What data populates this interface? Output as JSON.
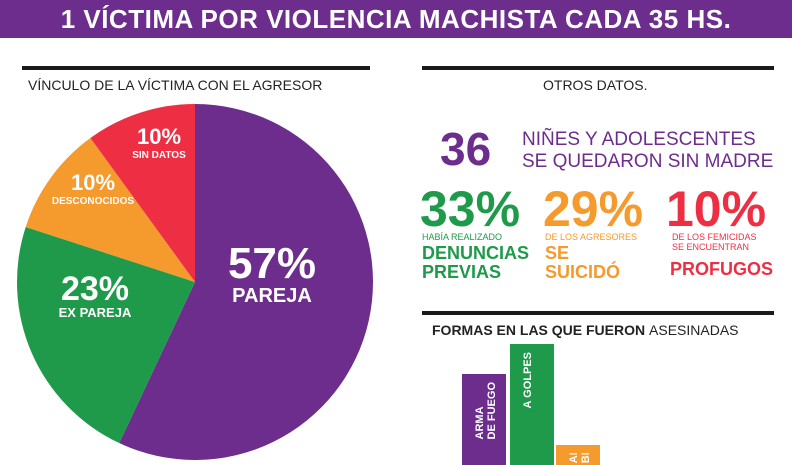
{
  "banner_title": "1 VÍCTIMA POR VIOLENCIA MACHISTA CADA 35 HS.",
  "colors": {
    "purple": "#6d2d8d",
    "green": "#1e9a4a",
    "orange": "#f59a2c",
    "red": "#ee2f43"
  },
  "left_section": {
    "title": "VÍNCULO DE LA VÍCTIMA CON EL AGRESOR"
  },
  "right_section": {
    "title": "OTROS DATOS.",
    "children_number": "36",
    "children_text_line1": "NIÑES Y ADOLESCENTES",
    "children_text_line2": "SE QUEDARON SIN MADRE",
    "stats": [
      {
        "value": "33%",
        "small": "HABÍA REALIZADO",
        "strong1": "DENUNCIAS",
        "strong2": "PREVIAS"
      },
      {
        "value": "29%",
        "small": "DE LOS AGRESORES",
        "strong1": "SE",
        "strong2": "SUICIDÓ"
      },
      {
        "value": "10%",
        "small1": "DE LOS FEMICIDAS",
        "small2": "SE ENCUENTRAN",
        "strong1": "PROFUGOS"
      }
    ]
  },
  "bars_section": {
    "title_bold": "FORMAS EN LAS QUE FUERON",
    "title_light": "ASESINADAS"
  },
  "chart_data": [
    {
      "type": "pie",
      "title": "VÍNCULO DE LA VÍCTIMA CON EL AGRESOR",
      "slices": [
        {
          "pct": "57%",
          "label": "PAREJA",
          "value": 57,
          "color": "#6d2d8d"
        },
        {
          "pct": "23%",
          "label": "EX PAREJA",
          "value": 23,
          "color": "#1e9a4a"
        },
        {
          "pct": "10%",
          "label": "DESCONOCIDOS",
          "value": 10,
          "color": "#f59a2c"
        },
        {
          "pct": "10%",
          "label": "SIN DATOS",
          "value": 10,
          "color": "#ee2f43"
        }
      ]
    },
    {
      "type": "bar",
      "title": "FORMAS EN LAS QUE FUERON ASESINADAS",
      "categories": [
        {
          "line1": "ARMA",
          "line2": "DE FUEGO",
          "color": "#6d2d8d",
          "value": 24
        },
        {
          "line1": "A GOLPES",
          "line2": "",
          "color": "#1e9a4a",
          "value": 31
        },
        {
          "line1": "ARMA",
          "line2": "BLANCA",
          "color": "#f59a2c",
          "value": 8
        }
      ]
    }
  ]
}
